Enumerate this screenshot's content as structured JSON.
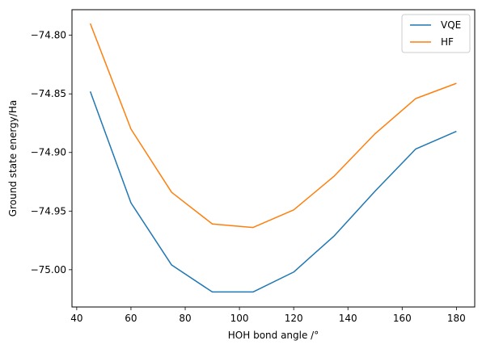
{
  "chart_data": {
    "type": "line",
    "title": "",
    "xlabel": "HOH bond angle /°",
    "ylabel": "Ground state energy/Ha",
    "xlim": [
      38.25,
      186.75
    ],
    "ylim": [
      -75.0318,
      -74.7782
    ],
    "xticks": [
      40,
      60,
      80,
      100,
      120,
      140,
      160,
      180
    ],
    "xtick_labels": [
      "40",
      "60",
      "80",
      "100",
      "120",
      "140",
      "160",
      "180"
    ],
    "yticks": [
      -75.0,
      -74.95,
      -74.9,
      -74.85,
      -74.8
    ],
    "ytick_labels": [
      "−75.00",
      "−74.95",
      "−74.90",
      "−74.85",
      "−74.80"
    ],
    "grid": false,
    "legend_position": "top-right",
    "x": [
      45,
      60,
      75,
      90,
      105,
      120,
      135,
      150,
      165,
      180
    ],
    "series": [
      {
        "name": "VQE",
        "color": "#1f77b4",
        "values": [
          -74.848,
          -74.943,
          -74.996,
          -75.019,
          -75.019,
          -75.002,
          -74.971,
          -74.933,
          -74.897,
          -74.882
        ]
      },
      {
        "name": "HF",
        "color": "#ff7f0e",
        "values": [
          -74.79,
          -74.88,
          -74.934,
          -74.961,
          -74.964,
          -74.949,
          -74.92,
          -74.884,
          -74.854,
          -74.841
        ]
      }
    ]
  }
}
